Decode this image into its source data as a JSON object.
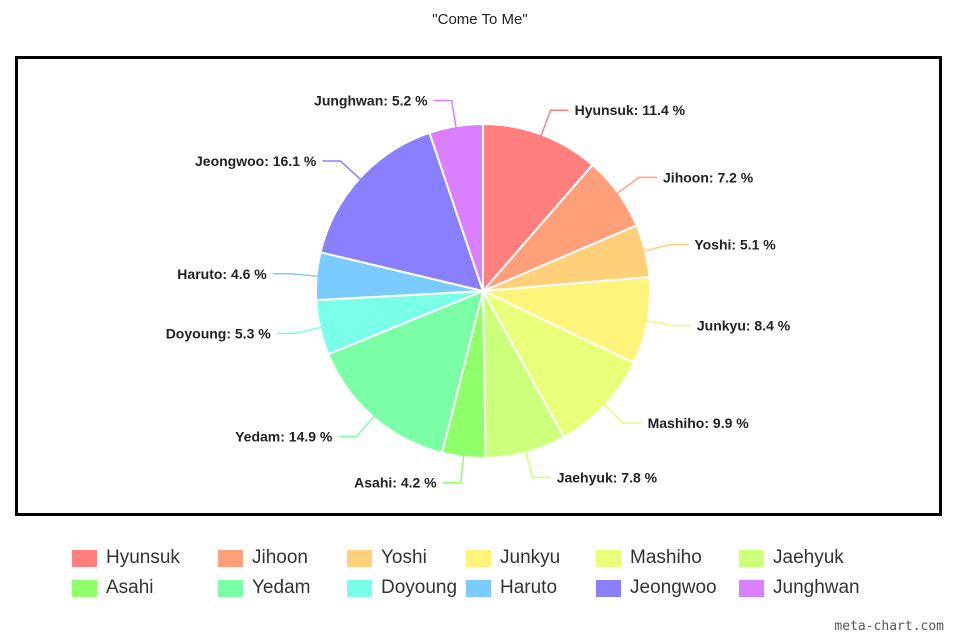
{
  "chart_data": {
    "type": "pie",
    "title": "\"Come To Me\"",
    "legend_position": "bottom",
    "start_angle_deg": 0,
    "direction": "clockwise",
    "slices": [
      {
        "label": "Hyunsuk",
        "value": 11.4,
        "display": "Hyunsuk: 11.4 %",
        "color": "#FF7F7F"
      },
      {
        "label": "Jihoon",
        "value": 7.2,
        "display": "Jihoon: 7.2 %",
        "color": "#FFA07A"
      },
      {
        "label": "Yoshi",
        "value": 5.1,
        "display": "Yoshi: 5.1 %",
        "color": "#FFCF7A"
      },
      {
        "label": "Junkyu",
        "value": 8.4,
        "display": "Junkyu: 8.4 %",
        "color": "#FFF47A"
      },
      {
        "label": "Mashiho",
        "value": 9.9,
        "display": "Mashiho: 9.9 %",
        "color": "#E9FF7A"
      },
      {
        "label": "Jaehyuk",
        "value": 7.8,
        "display": "Jaehyuk: 7.8 %",
        "color": "#CCFF7A"
      },
      {
        "label": "Asahi",
        "value": 4.2,
        "display": "Asahi: 4.2 %",
        "color": "#8FFF6A"
      },
      {
        "label": "Yedam",
        "value": 14.9,
        "display": "Yedam: 14.9 %",
        "color": "#7AFFA6"
      },
      {
        "label": "Doyoung",
        "value": 5.3,
        "display": "Doyoung: 5.3 %",
        "color": "#7AFFE9"
      },
      {
        "label": "Haruto",
        "value": 4.6,
        "display": "Haruto: 4.6 %",
        "color": "#7ACBFF"
      },
      {
        "label": "Jeongwoo",
        "value": 16.1,
        "display": "Jeongwoo: 16.1 %",
        "color": "#8A7FFF"
      },
      {
        "label": "Junghwan",
        "value": 5.2,
        "display": "Junghwan: 5.2 %",
        "color": "#D97FFF"
      }
    ]
  },
  "watermark": "meta-chart.com"
}
